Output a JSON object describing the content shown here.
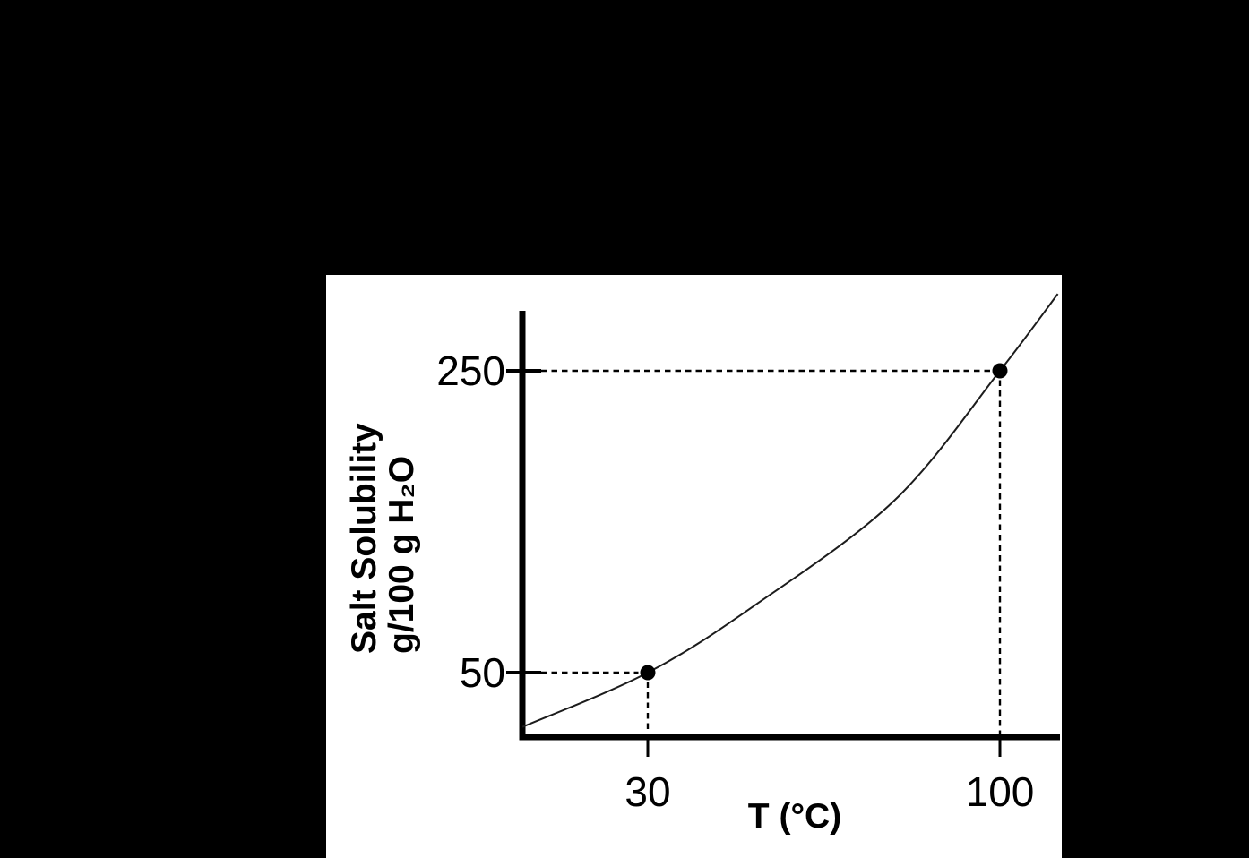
{
  "colors": {
    "background": "#000000",
    "panel": "#ffffff",
    "ink": "#000000"
  },
  "chart": {
    "y_axis_title": {
      "line1": "Salt Solubility",
      "line2": "g/100 g H₂O"
    },
    "x_axis_title": "T (°C)",
    "ticks": {
      "y250": "250",
      "y50": "50",
      "x30": "30",
      "x100": "100"
    }
  },
  "chart_data": {
    "type": "line",
    "title": "",
    "xlabel": "T (°C)",
    "ylabel": "Salt Solubility g/100 g H₂O",
    "x_ticks": [
      30,
      100
    ],
    "y_ticks": [
      50,
      250
    ],
    "xlim": [
      5,
      112
    ],
    "ylim": [
      8,
      290
    ],
    "grid": false,
    "legend": false,
    "marked_points": [
      {
        "x": 30,
        "y": 50
      },
      {
        "x": 100,
        "y": 250
      }
    ],
    "curve_points": [
      [
        5.1,
        14
      ],
      [
        30,
        50
      ],
      [
        51,
        94
      ],
      [
        79,
        164
      ],
      [
        100,
        250
      ],
      [
        111.5,
        301
      ]
    ],
    "annotations": "dashed guide lines connect each axis tick to the two marked data points"
  }
}
